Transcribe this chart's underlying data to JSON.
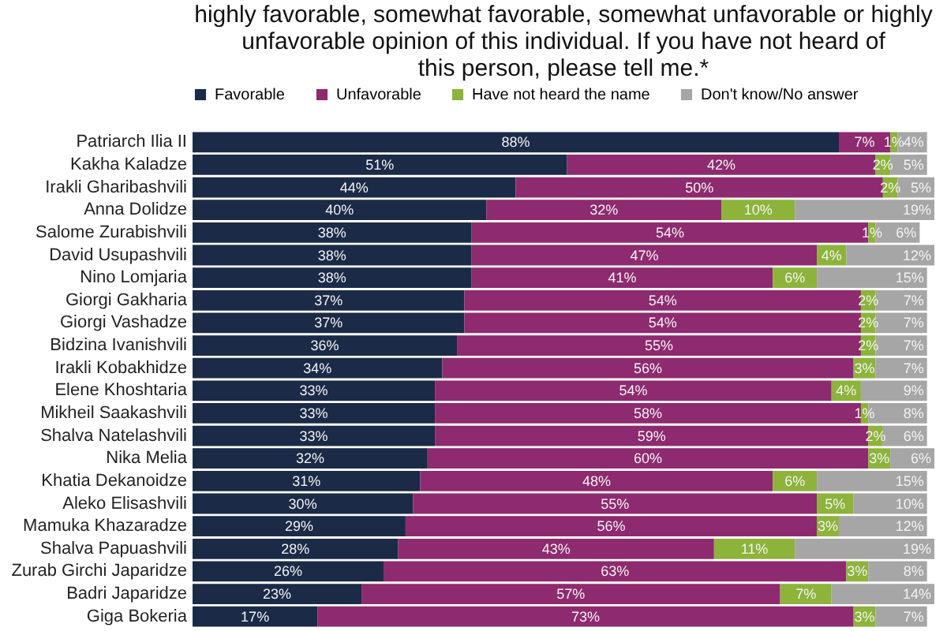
{
  "chart_data": {
    "type": "bar",
    "orientation": "horizontal",
    "stacked": true,
    "legend": "top",
    "title": "highly favorable, somewhat favorable, somewhat unfavorable or highly unfavorable opinion of this individual. If you have not heard of this person, please tell me.*",
    "categories": [
      "Patriarch Ilia II",
      "Kakha Kaladze",
      "Irakli Gharibashvili",
      "Anna Dolidze",
      "Salome Zurabishvili",
      "David Usupashvili",
      "Nino Lomjaria",
      "Giorgi Gakharia",
      "Giorgi Vashadze",
      "Bidzina Ivanishvili",
      "Irakli Kobakhidze",
      "Elene Khoshtaria",
      "Mikheil Saakashvili",
      "Shalva Natelashvili",
      "Nika Melia",
      "Khatia Dekanoidze",
      "Aleko Elisashvili",
      "Mamuka Khazaradze",
      "Shalva Papuashvili",
      "Zurab Girchi Japaridze",
      "Badri Japaridze",
      "Giga Bokeria"
    ],
    "series": [
      {
        "name": "Favorable",
        "color": "#1b2a47",
        "values": [
          88,
          51,
          44,
          40,
          38,
          38,
          38,
          37,
          37,
          36,
          34,
          33,
          33,
          33,
          32,
          31,
          30,
          29,
          28,
          26,
          23,
          17
        ],
        "value_labels": [
          "88%",
          "51%",
          "44%",
          "40%",
          "38%",
          "38%",
          "38%",
          "37%",
          "37%",
          "36%",
          "34%",
          "33%",
          "33%",
          "33%",
          "32%",
          "31%",
          "30%",
          "29%",
          "28%",
          "26%",
          "23%",
          "17%"
        ]
      },
      {
        "name": "Unfavorable",
        "color": "#8e2a6f",
        "values": [
          7,
          42,
          50,
          32,
          54,
          47,
          41,
          54,
          54,
          55,
          56,
          54,
          58,
          59,
          60,
          48,
          55,
          56,
          43,
          63,
          57,
          73
        ],
        "value_labels": [
          "7%",
          "42%",
          "50%",
          "32%",
          "54%",
          "47%",
          "41%",
          "54%",
          "54%",
          "55%",
          "56%",
          "54%",
          "58%",
          "59%",
          "60%",
          "48%",
          "55%",
          "56%",
          "43%",
          "63%",
          "57%",
          "73%"
        ]
      },
      {
        "name": "Have not heard the name",
        "color": "#8db33a",
        "values": [
          1,
          2,
          2,
          10,
          1,
          4,
          6,
          2,
          2,
          2,
          3,
          4,
          1,
          2,
          3,
          6,
          5,
          3,
          11,
          3,
          7,
          3
        ],
        "value_labels": [
          "1%",
          "2%",
          "2%",
          "10%",
          "1%",
          "4%",
          "6%",
          "2%",
          "2%",
          "2%",
          "3%",
          "4%",
          "1%",
          "2%",
          "3%",
          "6%",
          "5%",
          "3%",
          "11%",
          "3%",
          "7%",
          "3%"
        ]
      },
      {
        "name": "Don't know/No answer",
        "color": "#a6a6a6",
        "values": [
          4,
          5,
          5,
          19,
          6,
          12,
          15,
          7,
          7,
          7,
          7,
          9,
          8,
          6,
          6,
          15,
          10,
          12,
          19,
          8,
          14,
          7
        ],
        "value_labels": [
          "4%",
          "5%",
          "5%",
          "19%",
          "6%",
          "12%",
          "15%",
          "7%",
          "7%",
          "7%",
          "7%",
          "9%",
          "8%",
          "6%",
          "6%",
          "15%",
          "10%",
          "12%",
          "19%",
          "8%",
          "14%",
          "7%"
        ]
      }
    ]
  }
}
